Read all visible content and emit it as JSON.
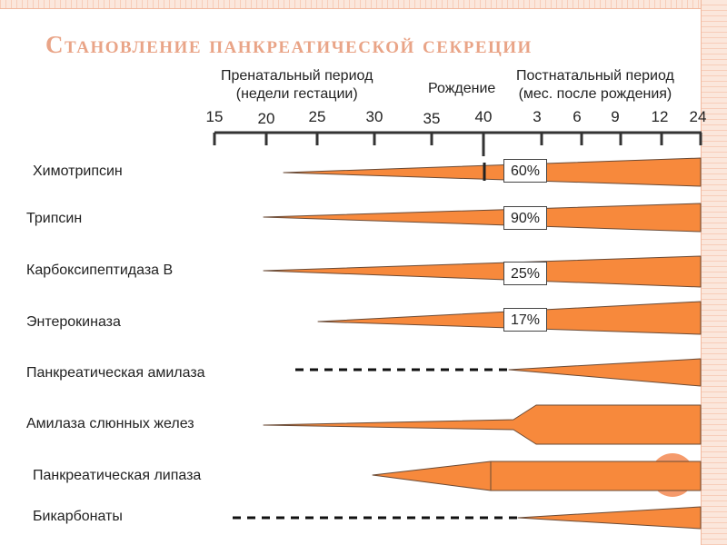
{
  "title": "Становление панкреатической секреции",
  "headers": {
    "prenatal_line1": "Пренатальный период",
    "prenatal_line2": "(недели гестации)",
    "birth": "Рождение",
    "postnatal_line1": "Постнатальный период",
    "postnatal_line2": "(мес. после рождения)"
  },
  "ticks": [
    "15",
    "20",
    "25",
    "30",
    "35",
    "40",
    "3",
    "6",
    "9",
    "12",
    "24"
  ],
  "rows": [
    {
      "label": "Химотрипсин",
      "percent": "60%"
    },
    {
      "label": "Трипсин",
      "percent": "90%"
    },
    {
      "label": "Карбоксипептидаза В",
      "percent": "25%"
    },
    {
      "label": "Энтерокиназа",
      "percent": "17%"
    },
    {
      "label": "Панкреатическая амилаза",
      "percent": ""
    },
    {
      "label": "Амилаза слюнных желез",
      "percent": ""
    },
    {
      "label": "Панкреатическая липаза",
      "percent": ""
    },
    {
      "label": "Бикарбонаты",
      "percent": ""
    }
  ],
  "colors": {
    "wedge": "#f7893c",
    "wedge_stroke": "#6a4a35",
    "title": "#e9a487",
    "frame": "#f7cdb9",
    "accent_dot": "#f59a6b"
  }
}
